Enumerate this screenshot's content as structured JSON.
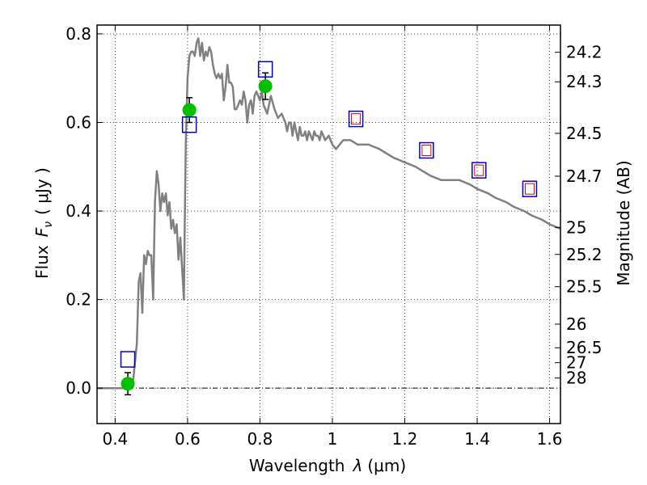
{
  "chart_data": {
    "type": "line",
    "xlabel": "Wavelength",
    "xlabel_symbol": "λ",
    "xlabel_units": "(μm)",
    "ylabel": "Flux",
    "ylabel_symbol": "F",
    "ylabel_subscript": "ν",
    "ylabel_units": "( μJy )",
    "y2label": "Magnitude (AB)",
    "xlim": [
      0.35,
      1.63
    ],
    "ylim": [
      -0.08,
      0.82
    ],
    "grid": true,
    "x_ticks": [
      0.4,
      0.6,
      0.8,
      1.0,
      1.2,
      1.4,
      1.6
    ],
    "x_tick_labels": [
      "0.4",
      "0.6",
      "0.8",
      "1",
      "1.2",
      "1.4",
      "1.6"
    ],
    "y_ticks": [
      0.0,
      0.2,
      0.4,
      0.6,
      0.8
    ],
    "y_tick_labels": [
      "0.0",
      "0.2",
      "0.4",
      "0.6",
      "0.8"
    ],
    "mag_ticks": [
      24.2,
      24.3,
      24.5,
      24.7,
      25,
      25.2,
      25.5,
      26,
      26.5,
      27,
      28
    ],
    "mag_tick_labels": [
      "24.2",
      "24.3",
      "24.5",
      "24.7",
      "25",
      "25.2",
      "25.5",
      "26",
      "26.5",
      "27",
      "28"
    ],
    "series": [
      {
        "name": "model spectrum",
        "style": "line",
        "color": "#808080",
        "x": [
          0.35,
          0.44,
          0.45,
          0.46,
          0.465,
          0.47,
          0.475,
          0.48,
          0.485,
          0.49,
          0.495,
          0.5,
          0.505,
          0.51,
          0.515,
          0.52,
          0.525,
          0.53,
          0.535,
          0.54,
          0.545,
          0.55,
          0.555,
          0.56,
          0.565,
          0.57,
          0.575,
          0.58,
          0.585,
          0.59,
          0.592,
          0.595,
          0.6,
          0.605,
          0.61,
          0.615,
          0.62,
          0.625,
          0.63,
          0.635,
          0.64,
          0.645,
          0.65,
          0.655,
          0.66,
          0.665,
          0.67,
          0.675,
          0.68,
          0.685,
          0.69,
          0.695,
          0.7,
          0.705,
          0.71,
          0.715,
          0.72,
          0.725,
          0.73,
          0.735,
          0.74,
          0.745,
          0.75,
          0.755,
          0.76,
          0.765,
          0.77,
          0.775,
          0.78,
          0.785,
          0.79,
          0.795,
          0.8,
          0.805,
          0.81,
          0.815,
          0.82,
          0.83,
          0.84,
          0.85,
          0.86,
          0.87,
          0.875,
          0.88,
          0.885,
          0.89,
          0.895,
          0.9,
          0.905,
          0.91,
          0.915,
          0.92,
          0.925,
          0.93,
          0.935,
          0.94,
          0.945,
          0.95,
          0.955,
          0.96,
          0.965,
          0.97,
          0.975,
          0.98,
          0.99,
          1.0,
          1.01,
          1.02,
          1.03,
          1.05,
          1.07,
          1.1,
          1.13,
          1.15,
          1.17,
          1.2,
          1.23,
          1.25,
          1.27,
          1.3,
          1.33,
          1.35,
          1.38,
          1.4,
          1.43,
          1.45,
          1.48,
          1.5,
          1.53,
          1.55,
          1.58,
          1.6,
          1.63
        ],
        "values": [
          0.0,
          0.0,
          0.02,
          0.1,
          0.24,
          0.26,
          0.17,
          0.3,
          0.28,
          0.31,
          0.3,
          0.3,
          0.2,
          0.42,
          0.49,
          0.46,
          0.4,
          0.44,
          0.42,
          0.44,
          0.39,
          0.42,
          0.36,
          0.38,
          0.35,
          0.37,
          0.29,
          0.34,
          0.27,
          0.2,
          0.35,
          0.55,
          0.7,
          0.75,
          0.76,
          0.76,
          0.75,
          0.78,
          0.79,
          0.75,
          0.78,
          0.74,
          0.76,
          0.75,
          0.77,
          0.76,
          0.73,
          0.71,
          0.7,
          0.71,
          0.7,
          0.71,
          0.65,
          0.68,
          0.73,
          0.69,
          0.69,
          0.68,
          0.63,
          0.63,
          0.64,
          0.65,
          0.64,
          0.67,
          0.65,
          0.6,
          0.64,
          0.65,
          0.62,
          0.66,
          0.67,
          0.66,
          0.65,
          0.67,
          0.64,
          0.63,
          0.62,
          0.66,
          0.63,
          0.61,
          0.62,
          0.6,
          0.58,
          0.6,
          0.6,
          0.57,
          0.6,
          0.58,
          0.56,
          0.59,
          0.57,
          0.57,
          0.58,
          0.56,
          0.58,
          0.57,
          0.56,
          0.58,
          0.57,
          0.57,
          0.56,
          0.58,
          0.57,
          0.56,
          0.57,
          0.55,
          0.54,
          0.55,
          0.56,
          0.56,
          0.55,
          0.55,
          0.54,
          0.53,
          0.52,
          0.51,
          0.5,
          0.49,
          0.48,
          0.47,
          0.47,
          0.47,
          0.46,
          0.45,
          0.44,
          0.43,
          0.42,
          0.41,
          0.4,
          0.39,
          0.38,
          0.37,
          0.36
        ]
      },
      {
        "name": "observed photometry",
        "style": "points",
        "marker": "filled-circle",
        "color": "#00c000",
        "x": [
          0.435,
          0.605,
          0.815
        ],
        "values": [
          0.01,
          0.628,
          0.682
        ],
        "errors": [
          0.025,
          0.028,
          0.03
        ]
      },
      {
        "name": "model photometry (blue squares)",
        "style": "points",
        "marker": "open-square",
        "color": "#0000cc",
        "x": [
          0.435,
          0.605,
          0.815,
          1.065,
          1.26,
          1.405,
          1.545
        ],
        "values": [
          0.065,
          0.595,
          0.72,
          0.608,
          0.537,
          0.492,
          0.45
        ]
      },
      {
        "name": "model photometry (red squares)",
        "style": "points",
        "marker": "open-square-small",
        "color": "#dd0000",
        "x": [
          1.065,
          1.26,
          1.405,
          1.545
        ],
        "values": [
          0.608,
          0.537,
          0.492,
          0.45
        ]
      }
    ]
  }
}
